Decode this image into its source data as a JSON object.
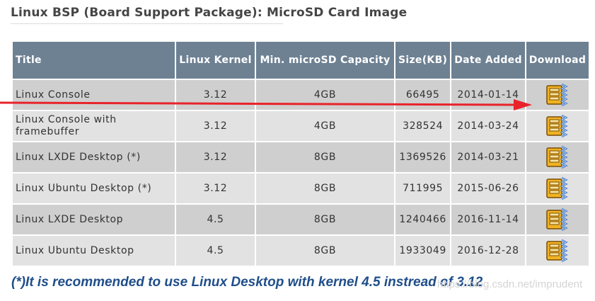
{
  "page_title": "Linux BSP (Board Support Package): MicroSD Card Image",
  "table": {
    "headers": [
      "Title",
      "Linux Kernel",
      "Min. microSD Capacity",
      "Size(KB)",
      "Date Added",
      "Download"
    ],
    "rows": [
      {
        "title": "Linux Console",
        "kernel": "3.12",
        "capacity": "4GB",
        "size": "66495",
        "date": "2014-01-14"
      },
      {
        "title": "Linux Console with framebuffer",
        "kernel": "3.12",
        "capacity": "4GB",
        "size": "328524",
        "date": "2014-03-24"
      },
      {
        "title": "Linux LXDE Desktop (*)",
        "kernel": "3.12",
        "capacity": "8GB",
        "size": "1369526",
        "date": "2014-03-21"
      },
      {
        "title": "Linux Ubuntu Desktop (*)",
        "kernel": "3.12",
        "capacity": "8GB",
        "size": "711995",
        "date": "2015-06-26"
      },
      {
        "title": "Linux LXDE Desktop",
        "kernel": "4.5",
        "capacity": "8GB",
        "size": "1240466",
        "date": "2016-11-14"
      },
      {
        "title": "Linux Ubuntu Desktop",
        "kernel": "4.5",
        "capacity": "8GB",
        "size": "1933049",
        "date": "2016-12-28"
      }
    ],
    "download_icon": "zip-archive-icon"
  },
  "note": "(*)It is recommended to use Linux Desktop with kernel 4.5 instread of 3.12",
  "watermark": "https://blog.csdn.net/imprudent",
  "colors": {
    "header_bg": "#6e8193",
    "row_odd": "#cfcfcf",
    "row_even": "#e2e2e2",
    "note_text": "#1f4e8a",
    "arrow": "#e8232a"
  }
}
